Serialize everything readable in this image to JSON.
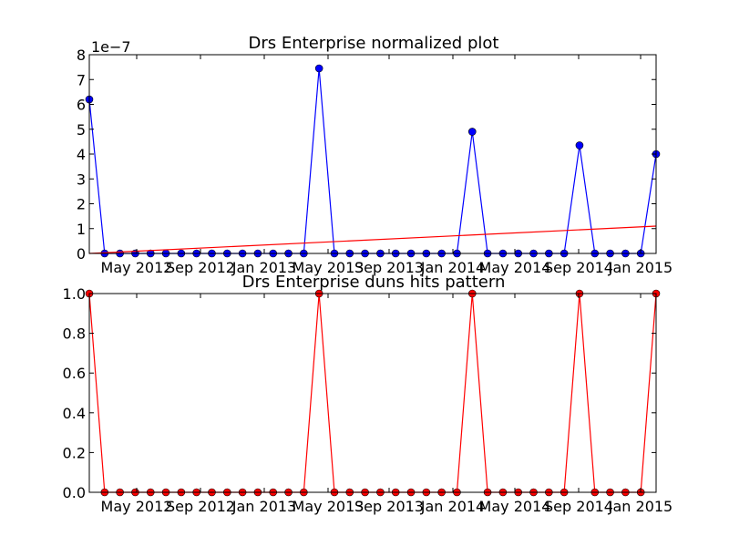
{
  "chart_data": [
    {
      "type": "line",
      "title": "Drs Enterprise normalized plot",
      "xlabel": "",
      "ylabel": "",
      "offset_label": "1e−7",
      "x_tick_labels": [
        "May 2012",
        "Sep 2012",
        "Jan 2013",
        "May 2013",
        "Sep 2013",
        "Jan 2014",
        "May 2014",
        "Sep 2014",
        "Jan 2015"
      ],
      "y_tick_labels": [
        "0",
        "1",
        "2",
        "3",
        "4",
        "5",
        "6",
        "7",
        "8"
      ],
      "ylim": [
        0,
        8
      ],
      "grid": false,
      "series": [
        {
          "color": "#0000ff",
          "marker": "circle",
          "values": [
            6.2,
            0,
            0,
            0,
            0,
            0,
            0,
            0,
            0,
            0,
            0,
            0,
            0,
            0,
            0,
            7.45,
            0,
            0,
            0,
            0,
            0,
            0,
            0,
            0,
            0,
            4.9,
            0,
            0,
            0,
            0,
            0,
            0,
            4.35,
            0,
            0,
            0,
            0,
            4.0
          ]
        },
        {
          "color": "#ff0000",
          "marker": "none",
          "values_start_end": [
            0.0,
            1.1
          ]
        }
      ]
    },
    {
      "type": "line",
      "title": "Drs Enterprise duns hits pattern",
      "xlabel": "",
      "ylabel": "",
      "x_tick_labels": [
        "May 2012",
        "Sep 2012",
        "Jan 2013",
        "May 2013",
        "Sep 2013",
        "Jan 2014",
        "May 2014",
        "Sep 2014",
        "Jan 2015"
      ],
      "y_tick_labels": [
        "0.0",
        "0.2",
        "0.4",
        "0.6",
        "0.8",
        "1.0"
      ],
      "ylim": [
        0,
        1
      ],
      "grid": false,
      "series": [
        {
          "color": "#ff0000",
          "marker": "circle",
          "values": [
            1,
            0,
            0,
            0,
            0,
            0,
            0,
            0,
            0,
            0,
            0,
            0,
            0,
            0,
            0,
            1,
            0,
            0,
            0,
            0,
            0,
            0,
            0,
            0,
            0,
            1,
            0,
            0,
            0,
            0,
            0,
            0,
            1,
            0,
            0,
            0,
            0,
            1
          ]
        }
      ]
    }
  ]
}
